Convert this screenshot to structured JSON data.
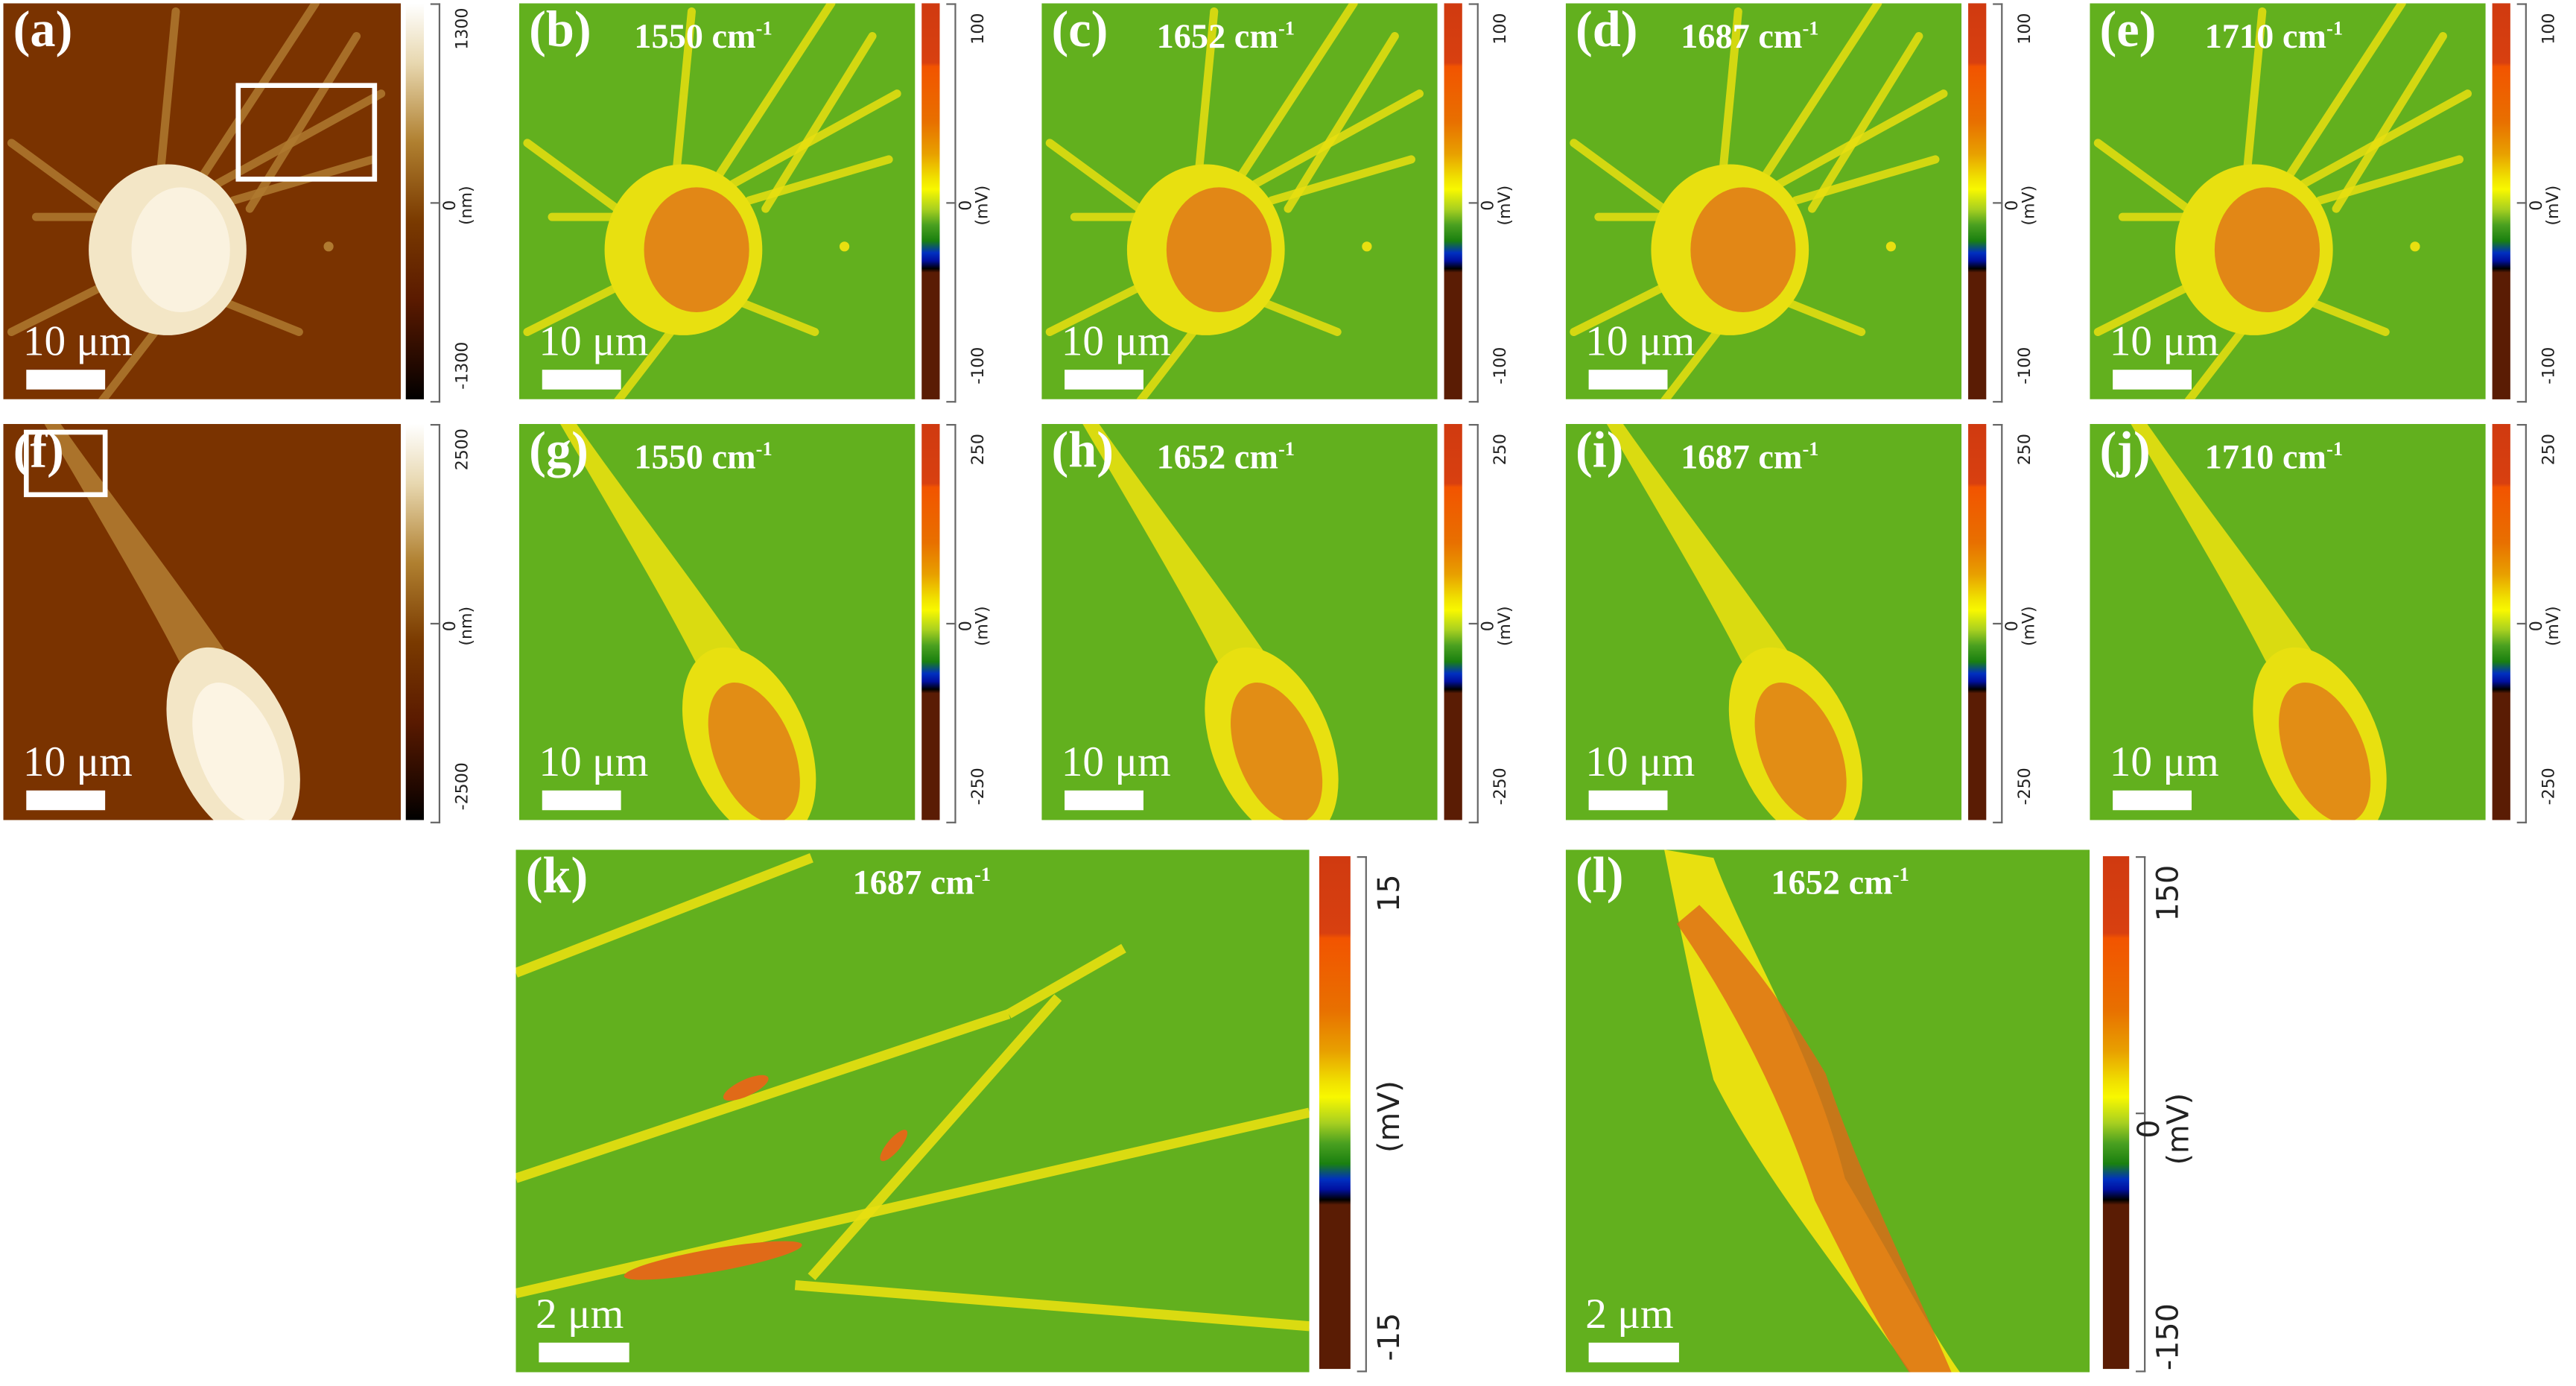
{
  "colors": {
    "topo_bg": "#7a3300",
    "ir_bg": "#62b01e",
    "ir_cell": "#e8e010",
    "ir_core": "#e06a18",
    "topo_cell": "#f3e6c6",
    "topo_proc": "#b07a30"
  },
  "panels": [
    {
      "label": "(a)",
      "type": "topography",
      "wavenumber": null,
      "scale_bar": "10 μm",
      "colorbar": {
        "max": "1300",
        "zero": "0",
        "min": "-1300",
        "unit": "(nm)"
      }
    },
    {
      "label": "(b)",
      "type": "ir",
      "wavenumber": "1550 cm",
      "sup": "-1",
      "scale_bar": "10 μm",
      "colorbar": {
        "max": "100",
        "zero": "0",
        "min": "-100",
        "unit": "(mV)"
      }
    },
    {
      "label": "(c)",
      "type": "ir",
      "wavenumber": "1652 cm",
      "sup": "-1",
      "scale_bar": "10 μm",
      "colorbar": {
        "max": "100",
        "zero": "0",
        "min": "-100",
        "unit": "(mV)"
      }
    },
    {
      "label": "(d)",
      "type": "ir",
      "wavenumber": "1687 cm",
      "sup": "-1",
      "scale_bar": "10 μm",
      "colorbar": {
        "max": "100",
        "zero": "0",
        "min": "-100",
        "unit": "(mV)"
      }
    },
    {
      "label": "(e)",
      "type": "ir",
      "wavenumber": "1710 cm",
      "sup": "-1",
      "scale_bar": "10 μm",
      "colorbar": {
        "max": "100",
        "zero": "0",
        "min": "-100",
        "unit": "(mV)"
      }
    },
    {
      "label": "(f)",
      "type": "topography",
      "wavenumber": null,
      "scale_bar": "10 μm",
      "colorbar": {
        "max": "2500",
        "zero": "0",
        "min": "-2500",
        "unit": "(nm)"
      }
    },
    {
      "label": "(g)",
      "type": "ir",
      "wavenumber": "1550 cm",
      "sup": "-1",
      "scale_bar": "10 μm",
      "colorbar": {
        "max": "250",
        "zero": "0",
        "min": "-250",
        "unit": "(mV)"
      }
    },
    {
      "label": "(h)",
      "type": "ir",
      "wavenumber": "1652 cm",
      "sup": "-1",
      "scale_bar": "10 μm",
      "colorbar": {
        "max": "250",
        "zero": "0",
        "min": "-250",
        "unit": "(mV)"
      }
    },
    {
      "label": "(i)",
      "type": "ir",
      "wavenumber": "1687 cm",
      "sup": "-1",
      "scale_bar": "10 μm",
      "colorbar": {
        "max": "250",
        "zero": "0",
        "min": "-250",
        "unit": "(mV)"
      }
    },
    {
      "label": "(j)",
      "type": "ir",
      "wavenumber": "1710 cm",
      "sup": "-1",
      "scale_bar": "10 μm",
      "colorbar": {
        "max": "250",
        "zero": "0",
        "min": "-250",
        "unit": "(mV)"
      }
    },
    {
      "label": "(k)",
      "type": "ir",
      "wavenumber": "1687 cm",
      "sup": "-1",
      "scale_bar": "2 μm",
      "colorbar": {
        "max": "15",
        "zero": "",
        "min": "-15",
        "unit": "(mV)"
      }
    },
    {
      "label": "(l)",
      "type": "ir",
      "wavenumber": "1652 cm",
      "sup": "-1",
      "scale_bar": "2 μm",
      "colorbar": {
        "max": "150",
        "zero": "0",
        "min": "-150",
        "unit": "(mV)"
      }
    }
  ]
}
